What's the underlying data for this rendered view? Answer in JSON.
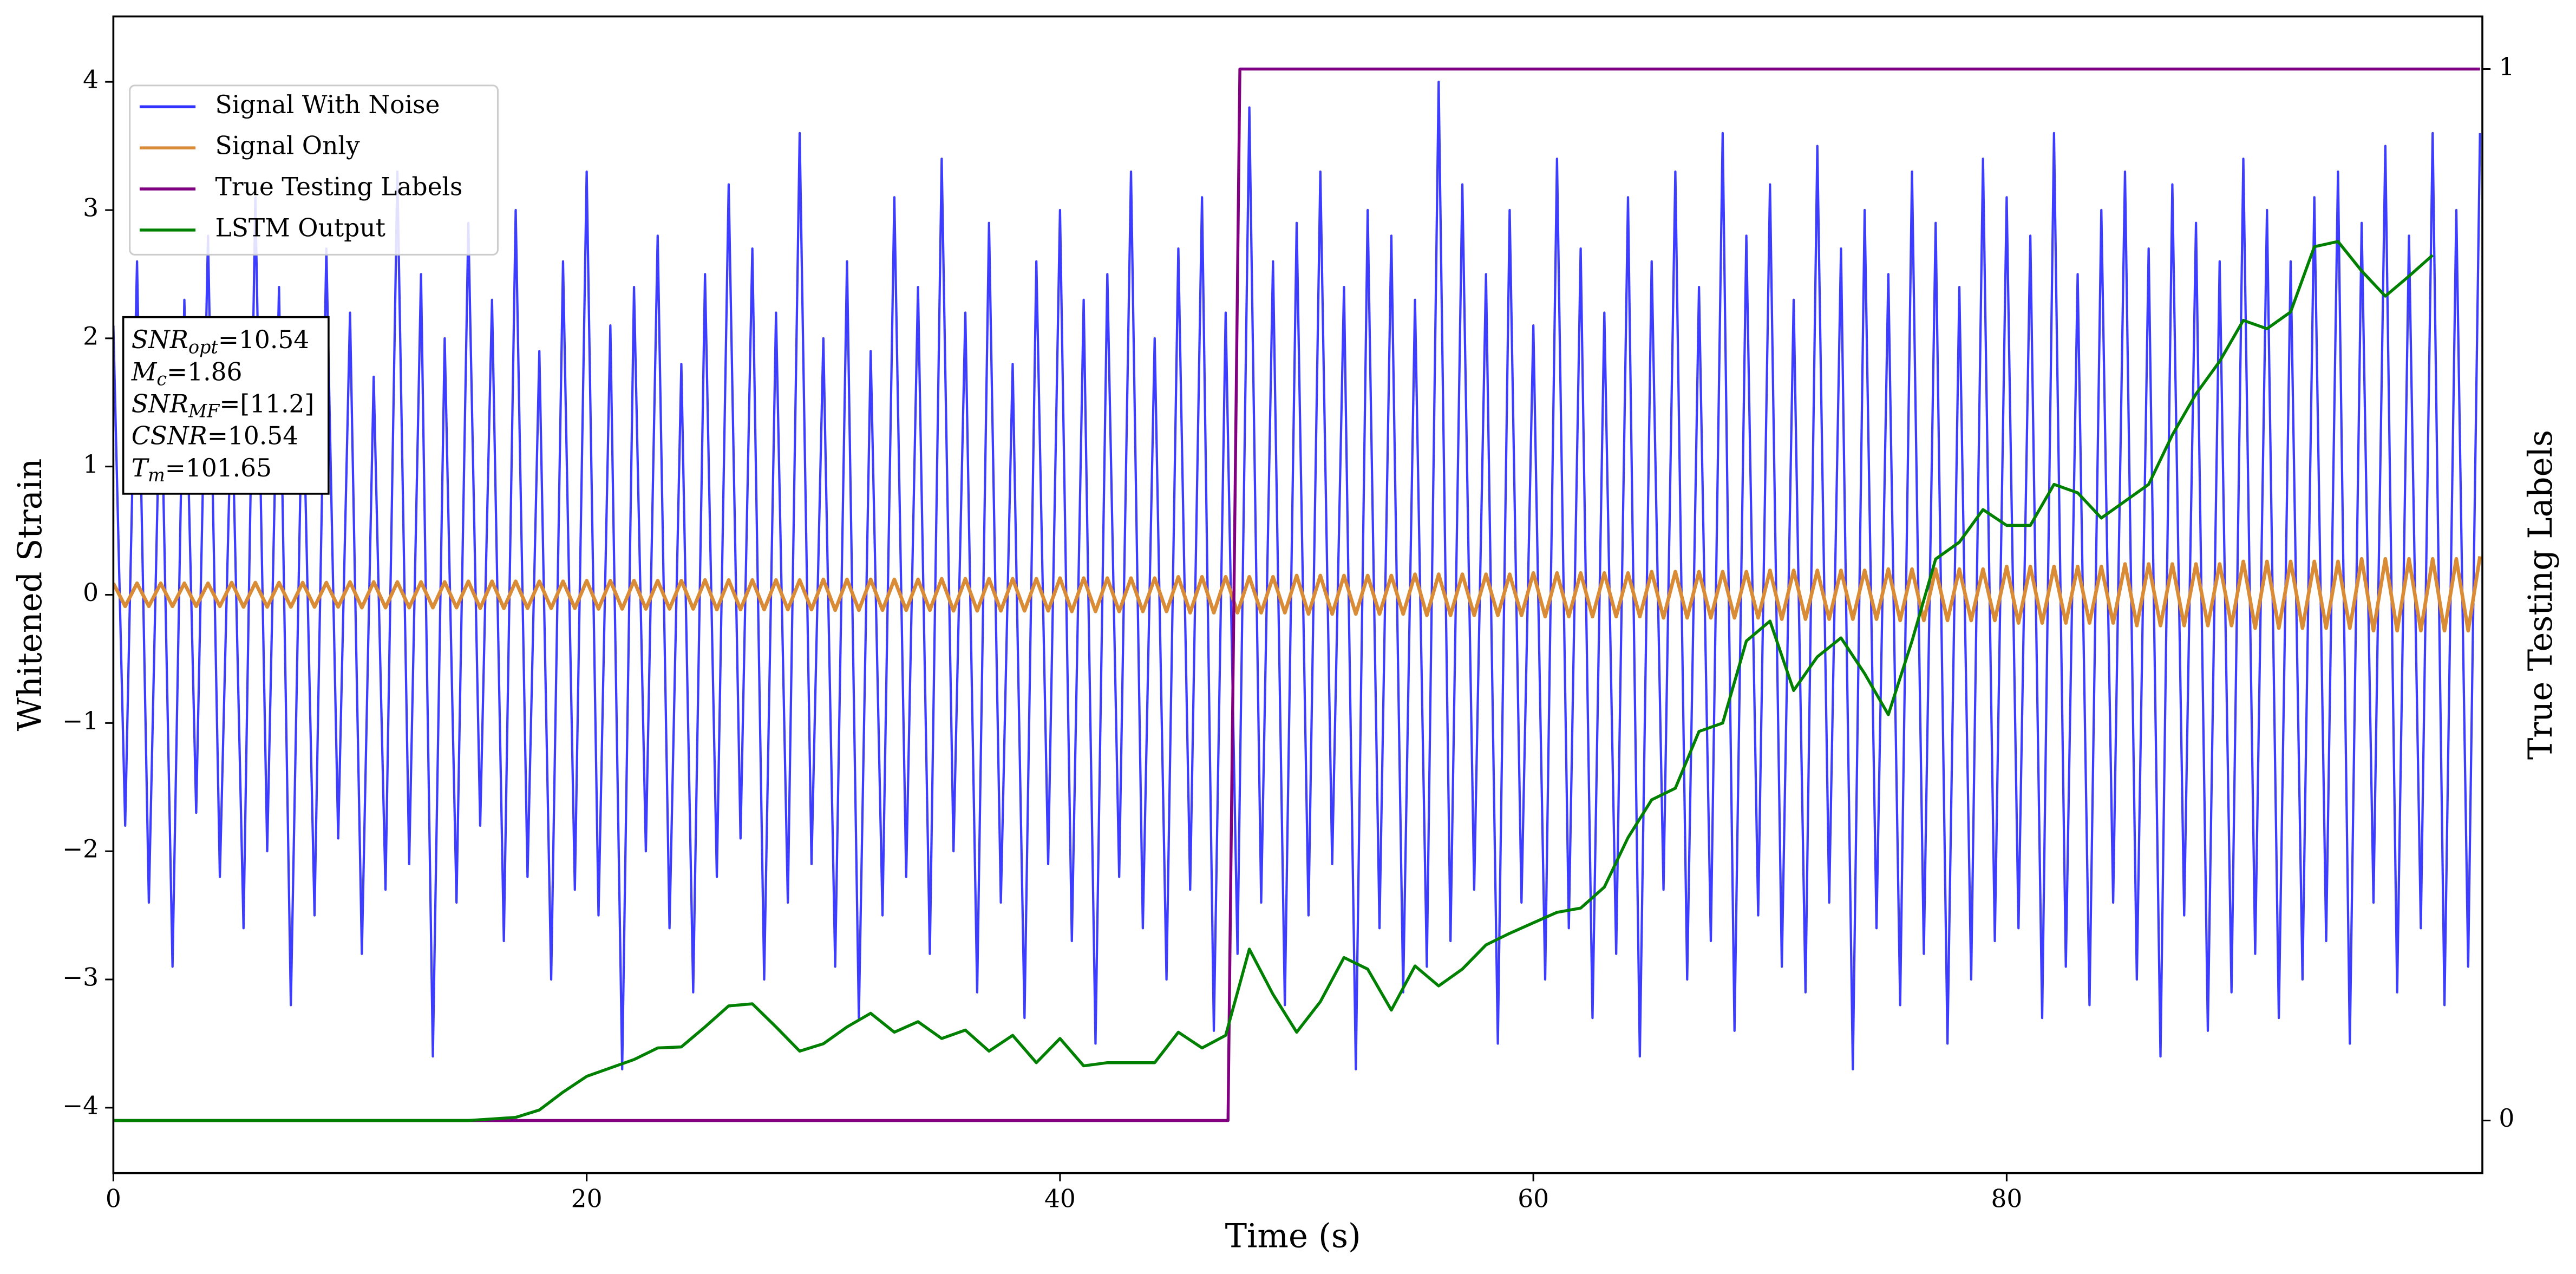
{
  "chart_data": {
    "type": "line",
    "xlabel": "Time (s)",
    "ylabel": "Whitened Strain",
    "y2label": "True Testing Labels",
    "xlim": [
      0,
      100.1
    ],
    "xticks": [
      0,
      20,
      40,
      60,
      80
    ],
    "ylim": [
      -4.51,
      4.51
    ],
    "yticks": [
      {
        "value": -4,
        "label": "−4"
      },
      {
        "value": -3,
        "label": "−3"
      },
      {
        "value": -2,
        "label": "−2"
      },
      {
        "value": -1,
        "label": "−1"
      },
      0,
      1,
      2,
      3,
      4
    ],
    "y2lim": [
      -0.05,
      1.05
    ],
    "y2ticks": [
      0,
      1
    ],
    "legend": "upper left",
    "x": [
      0,
      0.5,
      1,
      1.5,
      2,
      2.5,
      3,
      3.5,
      4,
      4.5,
      5,
      5.5,
      6,
      6.5,
      7,
      7.5,
      8,
      8.5,
      9,
      9.5,
      10,
      10.5,
      11,
      11.5,
      12,
      12.5,
      13,
      13.5,
      14,
      14.5,
      15,
      15.5,
      16,
      16.5,
      17,
      17.5,
      18,
      18.5,
      19,
      19.5,
      20,
      20.5,
      21,
      21.5,
      22,
      22.5,
      23,
      23.5,
      24,
      24.5,
      25,
      25.5,
      26,
      26.5,
      27,
      27.5,
      28,
      28.5,
      29,
      29.5,
      30,
      30.5,
      31,
      31.5,
      32,
      32.5,
      33,
      33.5,
      34,
      34.5,
      35,
      35.5,
      36,
      36.5,
      37,
      37.5,
      38,
      38.5,
      39,
      39.5,
      40,
      40.5,
      41,
      41.5,
      42,
      42.5,
      43,
      43.5,
      44,
      44.5,
      45,
      45.5,
      46,
      46.5,
      47,
      47.5,
      48,
      48.5,
      49,
      49.5,
      50,
      50.5,
      51,
      51.5,
      52,
      52.5,
      53,
      53.5,
      54,
      54.5,
      55,
      55.5,
      56,
      56.5,
      57,
      57.5,
      58,
      58.5,
      59,
      59.5,
      60,
      60.5,
      61,
      61.5,
      62,
      62.5,
      63,
      63.5,
      64,
      64.5,
      65,
      65.5,
      66,
      66.5,
      67,
      67.5,
      68,
      68.5,
      69,
      69.5,
      70,
      70.5,
      71,
      71.5,
      72,
      72.5,
      73,
      73.5,
      74,
      74.5,
      75,
      75.5,
      76,
      76.5,
      77,
      77.5,
      78,
      78.5,
      79,
      79.5,
      80,
      80.5,
      81,
      81.5,
      82,
      82.5,
      83,
      83.5,
      84,
      84.5,
      85,
      85.5,
      86,
      86.5,
      87,
      87.5,
      88,
      88.5,
      89,
      89.5,
      90,
      90.5,
      91,
      91.5,
      92,
      92.5,
      93,
      93.5,
      94,
      94.5,
      95,
      95.5,
      96,
      96.5,
      97,
      97.5,
      98,
      98.5,
      99,
      99.5,
      100
    ],
    "series": [
      {
        "name": "Signal With Noise",
        "color": "#3333ff",
        "values": [
          2.1,
          -1.8,
          2.6,
          -2.4,
          1.9,
          -2.9,
          2.3,
          -1.7,
          2.8,
          -2.2,
          1.6,
          -2.6,
          3.1,
          -2.0,
          2.4,
          -3.2,
          1.8,
          -2.5,
          2.7,
          -1.9,
          2.2,
          -2.8,
          1.7,
          -2.3,
          3.3,
          -2.1,
          2.5,
          -3.6,
          2.0,
          -2.4,
          2.9,
          -1.8,
          2.3,
          -2.7,
          3.0,
          -2.2,
          1.9,
          -3.0,
          2.6,
          -2.3,
          3.3,
          -2.5,
          2.1,
          -3.7,
          2.4,
          -2.0,
          2.8,
          -2.6,
          1.8,
          -3.1,
          2.5,
          -2.2,
          3.2,
          -1.9,
          2.7,
          -3.0,
          2.2,
          -2.4,
          3.6,
          -2.1,
          2.0,
          -2.9,
          2.6,
          -3.3,
          1.9,
          -2.5,
          3.1,
          -2.2,
          2.4,
          -2.8,
          3.4,
          -2.0,
          2.2,
          -3.1,
          2.9,
          -2.4,
          1.8,
          -3.3,
          2.6,
          -2.1,
          3.0,
          -2.7,
          2.3,
          -3.5,
          2.5,
          -2.2,
          3.3,
          -2.6,
          2.0,
          -3.0,
          2.7,
          -2.3,
          3.1,
          -3.4,
          2.2,
          -2.8,
          3.8,
          -2.4,
          2.6,
          -3.2,
          2.9,
          -2.5,
          3.3,
          -2.1,
          2.4,
          -3.7,
          3.0,
          -2.6,
          2.8,
          -3.1,
          2.3,
          -2.9,
          4.0,
          -2.7,
          3.2,
          -2.3,
          2.5,
          -3.5,
          3.0,
          -2.4,
          2.1,
          -3.0,
          3.4,
          -2.6,
          2.7,
          -3.3,
          2.2,
          -2.8,
          3.1,
          -3.6,
          2.6,
          -2.3,
          3.3,
          -3.0,
          2.4,
          -2.7,
          3.6,
          -3.4,
          2.8,
          -2.5,
          3.2,
          -2.9,
          2.3,
          -3.1,
          3.5,
          -2.4,
          2.7,
          -3.7,
          3.0,
          -2.6,
          2.5,
          -3.2,
          3.3,
          -2.8,
          2.9,
          -3.5,
          2.4,
          -3.0,
          3.4,
          -2.7,
          3.1,
          -2.6,
          2.8,
          -3.3,
          3.6,
          -2.9,
          2.5,
          -3.2,
          3.0,
          -2.4,
          3.3,
          -3.0,
          2.7,
          -3.6,
          3.2,
          -2.5,
          2.9,
          -3.4,
          2.6,
          -3.1,
          3.4,
          -2.8,
          3.0,
          -3.3,
          2.6,
          -3.0,
          3.1,
          -2.7,
          3.3,
          -3.5,
          2.9,
          -2.4,
          3.5,
          -3.1,
          2.8,
          -2.6,
          3.6,
          -3.2,
          3.0,
          -2.9,
          3.6
        ]
      },
      {
        "name": "Signal Only",
        "color": "#d98c35",
        "values": [
          0.09,
          -0.09,
          0.09,
          -0.09,
          0.09,
          -0.09,
          0.09,
          -0.09,
          0.09,
          -0.09,
          0.095,
          -0.095,
          0.095,
          -0.095,
          0.095,
          -0.095,
          0.095,
          -0.095,
          0.095,
          -0.095,
          0.1,
          -0.1,
          0.1,
          -0.1,
          0.1,
          -0.1,
          0.1,
          -0.1,
          0.1,
          -0.1,
          0.105,
          -0.105,
          0.105,
          -0.105,
          0.105,
          -0.105,
          0.105,
          -0.105,
          0.105,
          -0.105,
          0.11,
          -0.11,
          0.11,
          -0.11,
          0.11,
          -0.11,
          0.11,
          -0.11,
          0.11,
          -0.11,
          0.115,
          -0.115,
          0.115,
          -0.115,
          0.115,
          -0.115,
          0.115,
          -0.115,
          0.115,
          -0.115,
          0.12,
          -0.12,
          0.12,
          -0.12,
          0.12,
          -0.12,
          0.12,
          -0.12,
          0.12,
          -0.12,
          0.125,
          -0.125,
          0.125,
          -0.125,
          0.125,
          -0.125,
          0.125,
          -0.125,
          0.125,
          -0.125,
          0.13,
          -0.13,
          0.13,
          -0.13,
          0.13,
          -0.13,
          0.13,
          -0.13,
          0.13,
          -0.13,
          0.14,
          -0.14,
          0.14,
          -0.14,
          0.14,
          -0.14,
          0.14,
          -0.14,
          0.14,
          -0.14,
          0.15,
          -0.15,
          0.15,
          -0.15,
          0.15,
          -0.15,
          0.15,
          -0.15,
          0.15,
          -0.15,
          0.16,
          -0.16,
          0.16,
          -0.16,
          0.16,
          -0.16,
          0.16,
          -0.16,
          0.16,
          -0.16,
          0.17,
          -0.17,
          0.17,
          -0.17,
          0.17,
          -0.17,
          0.17,
          -0.17,
          0.17,
          -0.17,
          0.18,
          -0.18,
          0.18,
          -0.18,
          0.18,
          -0.18,
          0.18,
          -0.18,
          0.18,
          -0.18,
          0.19,
          -0.19,
          0.19,
          -0.19,
          0.19,
          -0.19,
          0.19,
          -0.19,
          0.19,
          -0.19,
          0.2,
          -0.2,
          0.2,
          -0.2,
          0.2,
          -0.2,
          0.2,
          -0.2,
          0.2,
          -0.2,
          0.22,
          -0.22,
          0.22,
          -0.22,
          0.22,
          -0.22,
          0.22,
          -0.22,
          0.22,
          -0.22,
          0.24,
          -0.24,
          0.24,
          -0.24,
          0.24,
          -0.24,
          0.24,
          -0.24,
          0.24,
          -0.24,
          0.26,
          -0.26,
          0.26,
          -0.26,
          0.26,
          -0.26,
          0.26,
          -0.26,
          0.26,
          -0.26,
          0.28,
          -0.28,
          0.28,
          -0.28,
          0.28,
          -0.28,
          0.28,
          -0.28,
          0.28,
          -0.28,
          0.3
        ]
      },
      {
        "name": "True Testing Labels",
        "color": "#800080",
        "axis": "y2",
        "x": [
          0,
          47.1,
          47.6,
          100
        ],
        "values": [
          0,
          0,
          1,
          1
        ]
      },
      {
        "name": "LSTM Output",
        "color": "#008000",
        "axis": "y2",
        "x": [
          0,
          5,
          10,
          15,
          17,
          18,
          19,
          20,
          21,
          22,
          23,
          24,
          25,
          26,
          27,
          28,
          29,
          30,
          31,
          32,
          33,
          34,
          35,
          36,
          37,
          38,
          39,
          40,
          41,
          42,
          43,
          44,
          45,
          46,
          47,
          48,
          49,
          50,
          51,
          52,
          53,
          54,
          55,
          56,
          57,
          58,
          59,
          60,
          61,
          62,
          63,
          64,
          65,
          66,
          67,
          68,
          69,
          70,
          71,
          72,
          73,
          74,
          75,
          76,
          77,
          78,
          79,
          80,
          81,
          82,
          83,
          84,
          85,
          86,
          87,
          88,
          89,
          90,
          91,
          92,
          93,
          94,
          95,
          96,
          97,
          98
        ],
        "values": [
          0,
          0,
          0,
          0,
          0.003,
          0.01,
          0.027,
          0.042,
          0.05,
          0.058,
          0.069,
          0.07,
          0.089,
          0.109,
          0.111,
          0.089,
          0.066,
          0.073,
          0.089,
          0.102,
          0.084,
          0.094,
          0.078,
          0.086,
          0.066,
          0.081,
          0.055,
          0.078,
          0.052,
          0.055,
          0.055,
          0.055,
          0.084,
          0.069,
          0.081,
          0.163,
          0.12,
          0.084,
          0.113,
          0.155,
          0.144,
          0.105,
          0.147,
          0.128,
          0.144,
          0.167,
          0.178,
          0.188,
          0.198,
          0.202,
          0.222,
          0.269,
          0.305,
          0.316,
          0.37,
          0.378,
          0.456,
          0.475,
          0.409,
          0.441,
          0.459,
          0.425,
          0.386,
          0.456,
          0.534,
          0.55,
          0.581,
          0.566,
          0.566,
          0.605,
          0.597,
          0.573,
          0.589,
          0.605,
          0.652,
          0.691,
          0.722,
          0.761,
          0.753,
          0.769,
          0.831,
          0.836,
          0.808,
          0.784,
          0.803,
          0.823
        ]
      }
    ],
    "annotation": [
      {
        "base": "SNR",
        "sub": "opt",
        "rest": "=10.54"
      },
      {
        "base": "M",
        "sub": "c",
        "rest": "=1.86"
      },
      {
        "base": "SNR",
        "sub": "MF",
        "rest": "=[11.2]"
      },
      {
        "base": "CSNR",
        "sub": null,
        "rest": "=10.54"
      },
      {
        "base": "T",
        "sub": "m",
        "rest": "=101.65"
      }
    ]
  }
}
